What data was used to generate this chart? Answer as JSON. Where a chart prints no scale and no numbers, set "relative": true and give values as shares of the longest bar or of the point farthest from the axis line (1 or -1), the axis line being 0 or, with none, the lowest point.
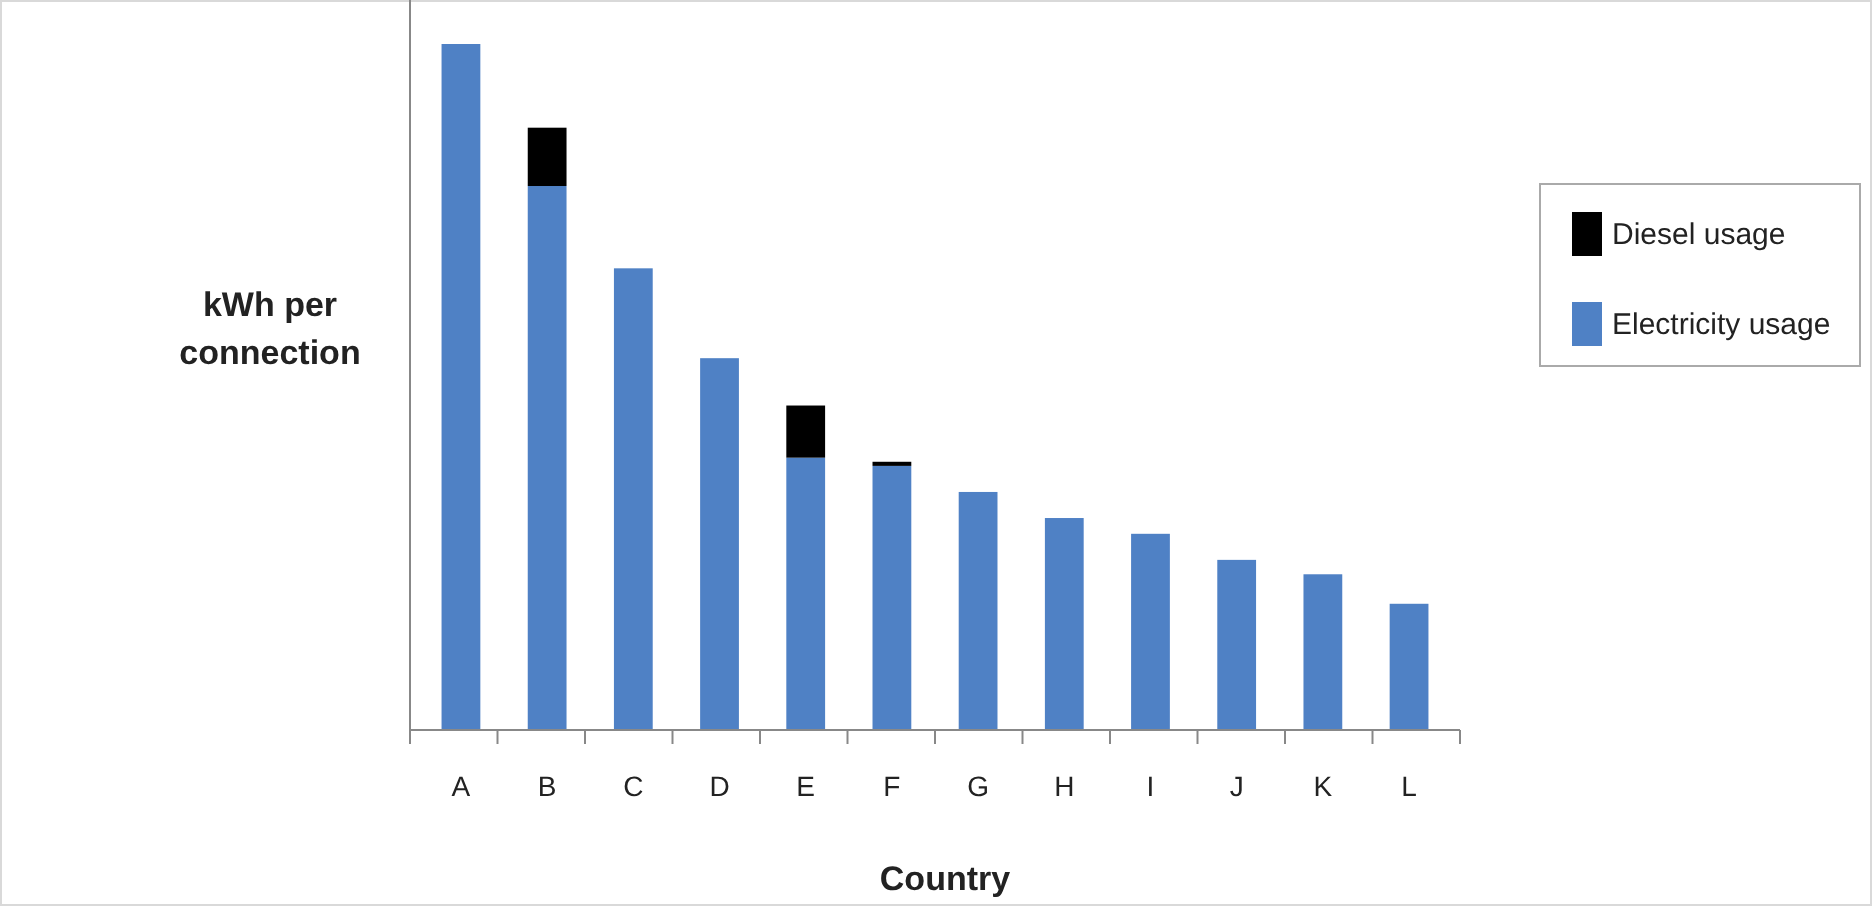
{
  "chart_data": {
    "type": "bar",
    "stacked": true,
    "relative": true,
    "xlabel": "Country",
    "ylabel": "kWh per connection",
    "legend": "right",
    "categories": [
      "A",
      "B",
      "C",
      "D",
      "E",
      "F",
      "G",
      "H",
      "I",
      "J",
      "K",
      "L"
    ],
    "series": [
      {
        "name": "Electricity usage",
        "color": "#4f81c5",
        "values": [
          1,
          0.793,
          0.673,
          0.542,
          0.397,
          0.385,
          0.347,
          0.309,
          0.286,
          0.248,
          0.227,
          0.184
        ]
      },
      {
        "name": "Diesel usage",
        "color": "#000000",
        "values": [
          0,
          0.085,
          0,
          0,
          0.076,
          0.006,
          0,
          0,
          0,
          0,
          0,
          0
        ]
      }
    ]
  }
}
